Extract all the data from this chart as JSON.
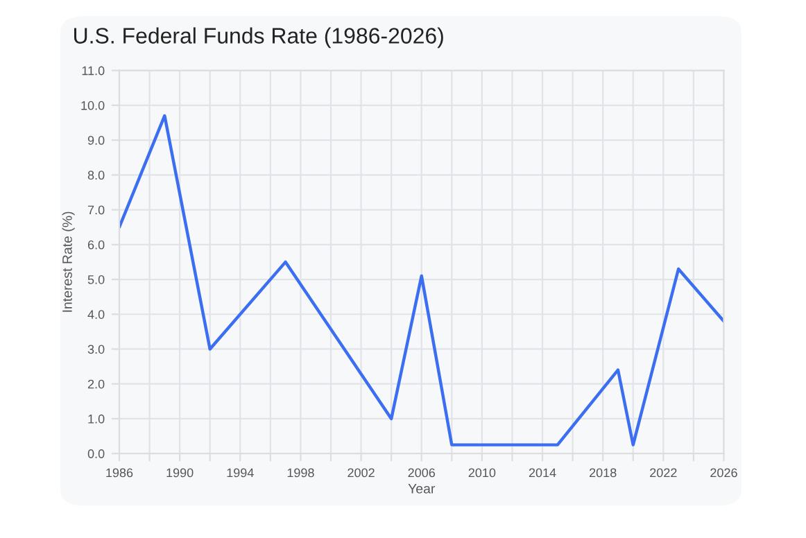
{
  "chart_data": {
    "type": "line",
    "title": "U.S. Federal Funds Rate (1986-2026)",
    "xlabel": "Year",
    "ylabel": "Interest Rate (%)",
    "x": [
      1986,
      1989,
      1992,
      1997,
      2004,
      2006,
      2008,
      2015,
      2019,
      2020,
      2023,
      2026
    ],
    "series": [
      {
        "color": "#3b6ef0",
        "values": [
          6.5,
          9.7,
          3.0,
          5.5,
          1.0,
          5.1,
          0.25,
          0.25,
          2.4,
          0.25,
          5.3,
          3.8
        ]
      }
    ],
    "xlim": [
      1986,
      2026
    ],
    "xticks": [
      1986,
      {
        "value": 1988,
        "label": null
      },
      1990,
      {
        "value": 1992,
        "label": null
      },
      1994,
      {
        "value": 1996,
        "label": null
      },
      1998,
      {
        "value": 2000,
        "label": null
      },
      2002,
      {
        "value": 2004,
        "label": null
      },
      2006,
      {
        "value": 2008,
        "label": null
      },
      2010,
      {
        "value": 2012,
        "label": null
      },
      2014,
      {
        "value": 2016,
        "label": null
      },
      2018,
      {
        "value": 2020,
        "label": null
      },
      2022,
      {
        "value": 2024,
        "label": null
      },
      2026
    ],
    "ylim": [
      0,
      11
    ],
    "yticks": [
      {
        "value": 0,
        "label": "0.0"
      },
      {
        "value": 1,
        "label": "1.0"
      },
      {
        "value": 2,
        "label": "2.0"
      },
      {
        "value": 3,
        "label": "3.0"
      },
      {
        "value": 4,
        "label": "4.0"
      },
      {
        "value": 5,
        "label": "5.0"
      },
      {
        "value": 6,
        "label": "6.0"
      },
      {
        "value": 7,
        "label": "7.0"
      },
      {
        "value": 8,
        "label": "8.0"
      },
      {
        "value": 9,
        "label": "9.0"
      },
      {
        "value": 10,
        "label": "10.0"
      },
      {
        "value": 11,
        "label": "11.0"
      }
    ],
    "grid": true,
    "marker": "none",
    "line_style": "solid"
  }
}
